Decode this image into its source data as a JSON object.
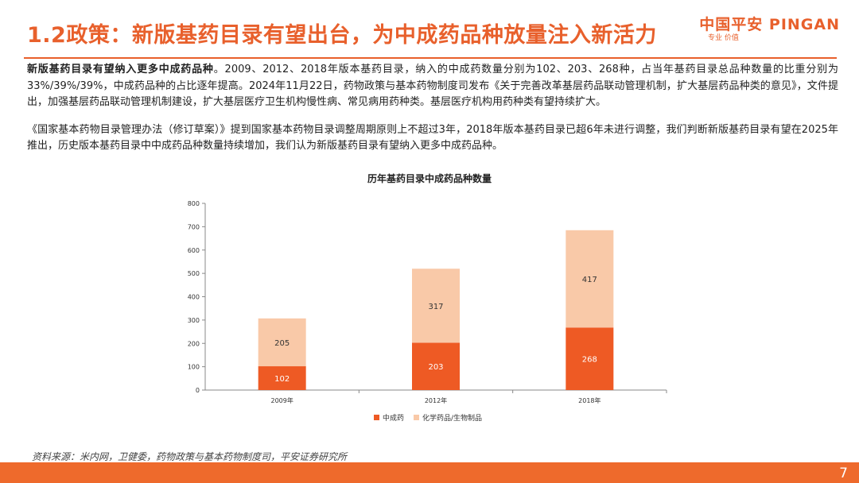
{
  "header": {
    "title": "1.2政策：新版基药目录有望出台，为中成药品种放量注入新活力",
    "logo_text": "中国平安 PINGAN",
    "logo_sub": "专业 价值"
  },
  "body": {
    "p1_lead": "新版基药目录有望纳入更多中成药品种",
    "p1_rest": "。2009、2012、2018年版本基药目录，纳入的中成药数量分别为102、203、268种，占当年基药目录总品种数量的比重分别为33%/39%/39%，中成药品种的占比逐年提高。2024年11月22日，药物政策与基本药物制度司发布《关于完善改革基层药品联动管理机制，扩大基层药品种类的意见》，文件提出，加强基层药品联动管理机制建设，扩大基层医疗卫生机构慢性病、常见病用药种类。基层医疗机构用药种类有望持续扩大。",
    "p2": "《国家基本药物目录管理办法（修订草案）》提到国家基本药物目录调整周期原则上不超过3年，2018年版本基药目录已超6年未进行调整，我们判断新版基药目录有望在2025年推出，历史版本基药目录中中成药品种数量持续增加，我们认为新版基药目录有望纳入更多中成药品种。"
  },
  "chart_data": {
    "type": "bar",
    "stacked": true,
    "title": "历年基药目录中成药品种数量",
    "categories": [
      "2009年",
      "2012年",
      "2018年"
    ],
    "series": [
      {
        "name": "中成药",
        "values": [
          102,
          203,
          268
        ],
        "color": "#ee5a24"
      },
      {
        "name": "化学药品/生物制品",
        "values": [
          205,
          317,
          417
        ],
        "color": "#f9c9a8"
      }
    ],
    "ylim": [
      0,
      800
    ],
    "yticks": [
      0,
      100,
      200,
      300,
      400,
      500,
      600,
      700,
      800
    ],
    "legend_position": "bottom",
    "data_labels": true,
    "grid": false
  },
  "footer": {
    "source": "资料来源：米内网，卫健委，药物政策与基本药物制度司，平安证券研究所",
    "page_number": "7"
  }
}
